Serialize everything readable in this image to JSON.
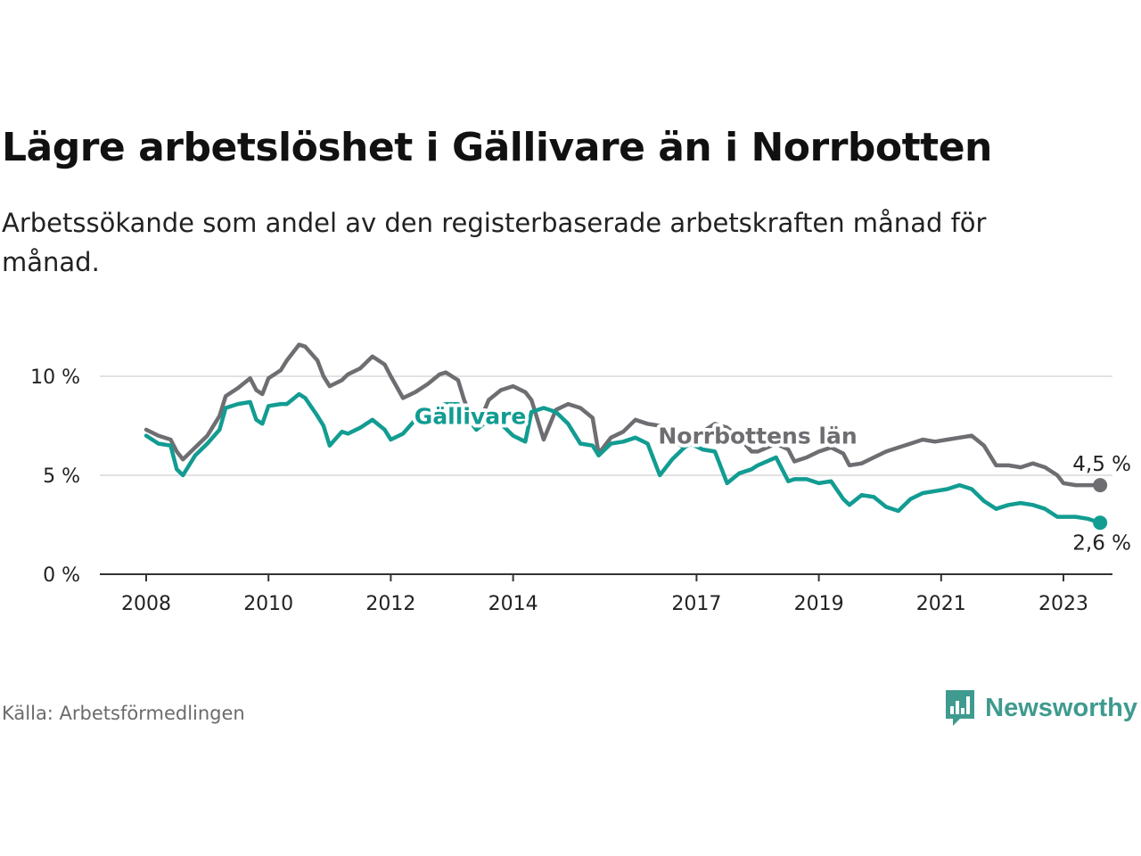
{
  "title": "Lägre arbetslöshet i Gällivare än i Norrbotten",
  "subtitle": "Arbetssökande som andel av den registerbaserade arbetskraften månad för månad.",
  "source": "Källa: Arbetsförmedlingen",
  "brand": {
    "name": "Newsworthy",
    "icon": "bar-chart-speech-bubble-icon",
    "color": "#3f9a8f"
  },
  "chart_data": {
    "type": "line",
    "title": "Lägre arbetslöshet i Gällivare än i Norrbotten",
    "xlabel": "",
    "ylabel": "",
    "xlim": [
      2007.6,
      2024.0
    ],
    "ylim": [
      0,
      10
    ],
    "grid": true,
    "x_ticks": [
      2008,
      2010,
      2012,
      2014,
      2017,
      2019,
      2021,
      2023
    ],
    "x_tick_labels": [
      "2008",
      "2010",
      "2012",
      "2014",
      "2017",
      "2019",
      "2021",
      "2023"
    ],
    "y_ticks": [
      0,
      5,
      10
    ],
    "y_tick_labels": [
      "0 %",
      "5 %",
      "10 %"
    ],
    "series": [
      {
        "name": "Norrbottens län",
        "color": "#6e6e72",
        "end_label": "4,5 %",
        "points": [
          [
            2008.0,
            7.3
          ],
          [
            2008.2,
            7.0
          ],
          [
            2008.4,
            6.8
          ],
          [
            2008.5,
            6.2
          ],
          [
            2008.6,
            5.8
          ],
          [
            2008.8,
            6.4
          ],
          [
            2009.0,
            7.0
          ],
          [
            2009.2,
            8.0
          ],
          [
            2009.3,
            9.0
          ],
          [
            2009.5,
            9.4
          ],
          [
            2009.7,
            9.9
          ],
          [
            2009.8,
            9.3
          ],
          [
            2009.9,
            9.1
          ],
          [
            2010.0,
            9.9
          ],
          [
            2010.2,
            10.3
          ],
          [
            2010.3,
            10.8
          ],
          [
            2010.5,
            11.6
          ],
          [
            2010.6,
            11.5
          ],
          [
            2010.8,
            10.8
          ],
          [
            2010.9,
            10.0
          ],
          [
            2011.0,
            9.5
          ],
          [
            2011.2,
            9.8
          ],
          [
            2011.3,
            10.1
          ],
          [
            2011.5,
            10.4
          ],
          [
            2011.7,
            11.0
          ],
          [
            2011.9,
            10.6
          ],
          [
            2012.0,
            10.0
          ],
          [
            2012.2,
            8.9
          ],
          [
            2012.4,
            9.2
          ],
          [
            2012.6,
            9.6
          ],
          [
            2012.8,
            10.1
          ],
          [
            2012.9,
            10.2
          ],
          [
            2013.1,
            9.8
          ],
          [
            2013.2,
            8.8
          ],
          [
            2013.4,
            7.3
          ],
          [
            2013.6,
            8.8
          ],
          [
            2013.8,
            9.3
          ],
          [
            2014.0,
            9.5
          ],
          [
            2014.2,
            9.2
          ],
          [
            2014.3,
            8.8
          ],
          [
            2014.5,
            6.8
          ],
          [
            2014.7,
            8.3
          ],
          [
            2014.9,
            8.6
          ],
          [
            2015.1,
            8.4
          ],
          [
            2015.3,
            7.9
          ],
          [
            2015.4,
            6.1
          ],
          [
            2015.6,
            6.9
          ],
          [
            2015.8,
            7.2
          ],
          [
            2016.0,
            7.8
          ],
          [
            2016.2,
            7.6
          ],
          [
            2016.4,
            7.5
          ],
          [
            2016.6,
            6.8
          ],
          [
            2016.8,
            6.4
          ],
          [
            2016.9,
            6.8
          ],
          [
            2017.1,
            7.2
          ],
          [
            2017.3,
            7.6
          ],
          [
            2017.5,
            7.4
          ],
          [
            2017.7,
            6.9
          ],
          [
            2017.9,
            6.2
          ],
          [
            2018.0,
            6.2
          ],
          [
            2018.3,
            6.6
          ],
          [
            2018.5,
            6.3
          ],
          [
            2018.6,
            5.7
          ],
          [
            2018.8,
            5.9
          ],
          [
            2019.0,
            6.2
          ],
          [
            2019.2,
            6.4
          ],
          [
            2019.4,
            6.1
          ],
          [
            2019.5,
            5.5
          ],
          [
            2019.7,
            5.6
          ],
          [
            2019.9,
            5.9
          ],
          [
            2020.1,
            6.2
          ],
          [
            2020.3,
            6.4
          ],
          [
            2020.5,
            6.6
          ],
          [
            2020.7,
            6.8
          ],
          [
            2020.9,
            6.7
          ],
          [
            2021.1,
            6.8
          ],
          [
            2021.3,
            6.9
          ],
          [
            2021.5,
            7.0
          ],
          [
            2021.7,
            6.5
          ],
          [
            2021.9,
            5.5
          ],
          [
            2022.1,
            5.5
          ],
          [
            2022.3,
            5.4
          ],
          [
            2022.5,
            5.6
          ],
          [
            2022.7,
            5.4
          ],
          [
            2022.9,
            5.0
          ],
          [
            2023.0,
            4.6
          ],
          [
            2023.2,
            4.5
          ],
          [
            2023.4,
            4.5
          ],
          [
            2023.5,
            4.5
          ],
          [
            2023.6,
            4.5
          ]
        ]
      },
      {
        "name": "Gällivare",
        "color": "#129c92",
        "end_label": "2,6 %",
        "points": [
          [
            2008.0,
            7.0
          ],
          [
            2008.2,
            6.6
          ],
          [
            2008.4,
            6.5
          ],
          [
            2008.5,
            5.3
          ],
          [
            2008.6,
            5.0
          ],
          [
            2008.8,
            6.0
          ],
          [
            2009.0,
            6.6
          ],
          [
            2009.2,
            7.3
          ],
          [
            2009.3,
            8.4
          ],
          [
            2009.5,
            8.6
          ],
          [
            2009.7,
            8.7
          ],
          [
            2009.8,
            7.8
          ],
          [
            2009.9,
            7.6
          ],
          [
            2010.0,
            8.5
          ],
          [
            2010.2,
            8.6
          ],
          [
            2010.3,
            8.6
          ],
          [
            2010.5,
            9.1
          ],
          [
            2010.6,
            8.9
          ],
          [
            2010.8,
            8.0
          ],
          [
            2010.9,
            7.5
          ],
          [
            2011.0,
            6.5
          ],
          [
            2011.2,
            7.2
          ],
          [
            2011.3,
            7.1
          ],
          [
            2011.5,
            7.4
          ],
          [
            2011.7,
            7.8
          ],
          [
            2011.9,
            7.3
          ],
          [
            2012.0,
            6.8
          ],
          [
            2012.2,
            7.1
          ],
          [
            2012.4,
            7.8
          ],
          [
            2012.6,
            8.2
          ],
          [
            2012.8,
            8.5
          ],
          [
            2012.9,
            8.6
          ],
          [
            2013.1,
            8.6
          ],
          [
            2013.2,
            8.1
          ],
          [
            2013.4,
            7.3
          ],
          [
            2013.6,
            7.8
          ],
          [
            2013.8,
            7.6
          ],
          [
            2014.0,
            7.0
          ],
          [
            2014.2,
            6.7
          ],
          [
            2014.3,
            8.2
          ],
          [
            2014.5,
            8.4
          ],
          [
            2014.7,
            8.2
          ],
          [
            2014.9,
            7.6
          ],
          [
            2015.1,
            6.6
          ],
          [
            2015.3,
            6.5
          ],
          [
            2015.4,
            6.0
          ],
          [
            2015.6,
            6.6
          ],
          [
            2015.8,
            6.7
          ],
          [
            2016.0,
            6.9
          ],
          [
            2016.2,
            6.6
          ],
          [
            2016.4,
            5.0
          ],
          [
            2016.6,
            5.8
          ],
          [
            2016.8,
            6.4
          ],
          [
            2016.9,
            6.6
          ],
          [
            2017.1,
            6.3
          ],
          [
            2017.3,
            6.2
          ],
          [
            2017.5,
            4.6
          ],
          [
            2017.7,
            5.1
          ],
          [
            2017.9,
            5.3
          ],
          [
            2018.0,
            5.5
          ],
          [
            2018.3,
            5.9
          ],
          [
            2018.5,
            4.7
          ],
          [
            2018.6,
            4.8
          ],
          [
            2018.8,
            4.8
          ],
          [
            2019.0,
            4.6
          ],
          [
            2019.2,
            4.7
          ],
          [
            2019.4,
            3.8
          ],
          [
            2019.5,
            3.5
          ],
          [
            2019.7,
            4.0
          ],
          [
            2019.9,
            3.9
          ],
          [
            2020.1,
            3.4
          ],
          [
            2020.3,
            3.2
          ],
          [
            2020.5,
            3.8
          ],
          [
            2020.7,
            4.1
          ],
          [
            2020.9,
            4.2
          ],
          [
            2021.1,
            4.3
          ],
          [
            2021.3,
            4.5
          ],
          [
            2021.5,
            4.3
          ],
          [
            2021.7,
            3.7
          ],
          [
            2021.9,
            3.3
          ],
          [
            2022.1,
            3.5
          ],
          [
            2022.3,
            3.6
          ],
          [
            2022.5,
            3.5
          ],
          [
            2022.7,
            3.3
          ],
          [
            2022.9,
            2.9
          ],
          [
            2023.0,
            2.9
          ],
          [
            2023.2,
            2.9
          ],
          [
            2023.4,
            2.8
          ],
          [
            2023.5,
            2.7
          ],
          [
            2023.6,
            2.6
          ]
        ]
      }
    ],
    "annotations": [
      {
        "text": "Gällivare",
        "series": "Gällivare",
        "x": 2013.3,
        "y": 8.0
      },
      {
        "text": "Norrbottens län",
        "series": "Norrbottens län",
        "x": 2018.0,
        "y": 7.0
      },
      {
        "text": "4,5 %",
        "series": "Norrbottens län",
        "x": 2023.6,
        "y": 4.5
      },
      {
        "text": "2,6 %",
        "series": "Gällivare",
        "x": 2023.6,
        "y": 2.6
      }
    ]
  }
}
